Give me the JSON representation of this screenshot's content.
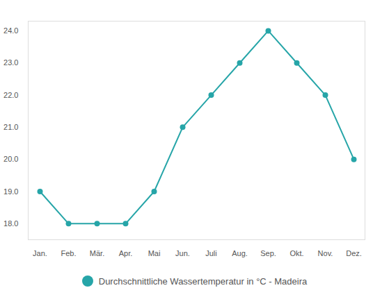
{
  "chart_data": {
    "type": "line",
    "categories": [
      "Jan.",
      "Feb.",
      "Mär.",
      "Apr.",
      "Mai",
      "Jun.",
      "Juli",
      "Aug.",
      "Sep.",
      "Okt.",
      "Nov.",
      "Dez."
    ],
    "series": [
      {
        "name": "Durchschnittliche Wassertemperatur in °C - Madeira",
        "color": "#26a5a8",
        "marker": "circle",
        "values": [
          19,
          18,
          18,
          18,
          19,
          21,
          22,
          23,
          24,
          23,
          22,
          20
        ]
      }
    ],
    "ylim": [
      17.5,
      24.3
    ],
    "yticks": [
      18,
      19,
      20,
      21,
      22,
      23,
      24
    ],
    "grid": false,
    "legend": "bottom"
  }
}
